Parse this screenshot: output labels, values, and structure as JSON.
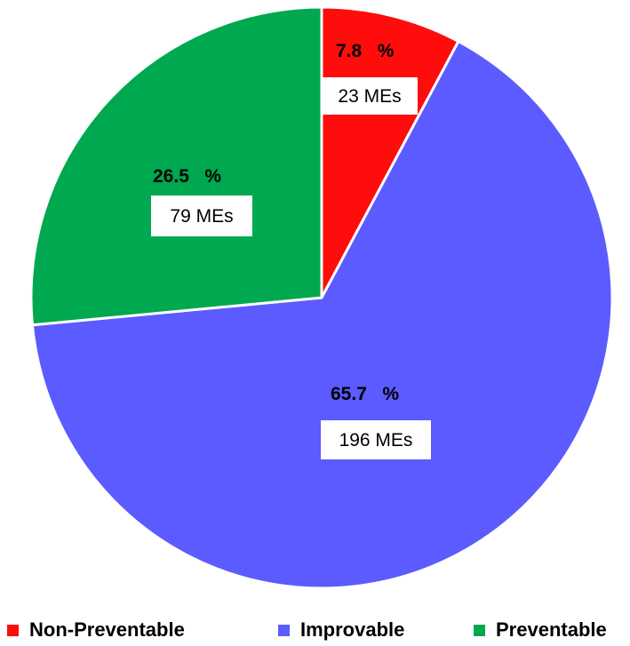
{
  "chart_data": {
    "type": "pie",
    "start_angle": "12 o'clock",
    "direction": "clockwise",
    "legend_position": "bottom",
    "slices": [
      {
        "name": "Non-Preventable",
        "value": 7.8,
        "percent_label": "7.8 %",
        "count_label": "23 MEs",
        "color": "#ff0d0d"
      },
      {
        "name": "Improvable",
        "value": 65.7,
        "percent_label": "65.7 %",
        "count_label": "196 MEs",
        "color": "#5b5bff"
      },
      {
        "name": "Preventable",
        "value": 26.5,
        "percent_label": "26.5 %",
        "count_label": "79 MEs",
        "color": "#00a84f"
      }
    ]
  }
}
